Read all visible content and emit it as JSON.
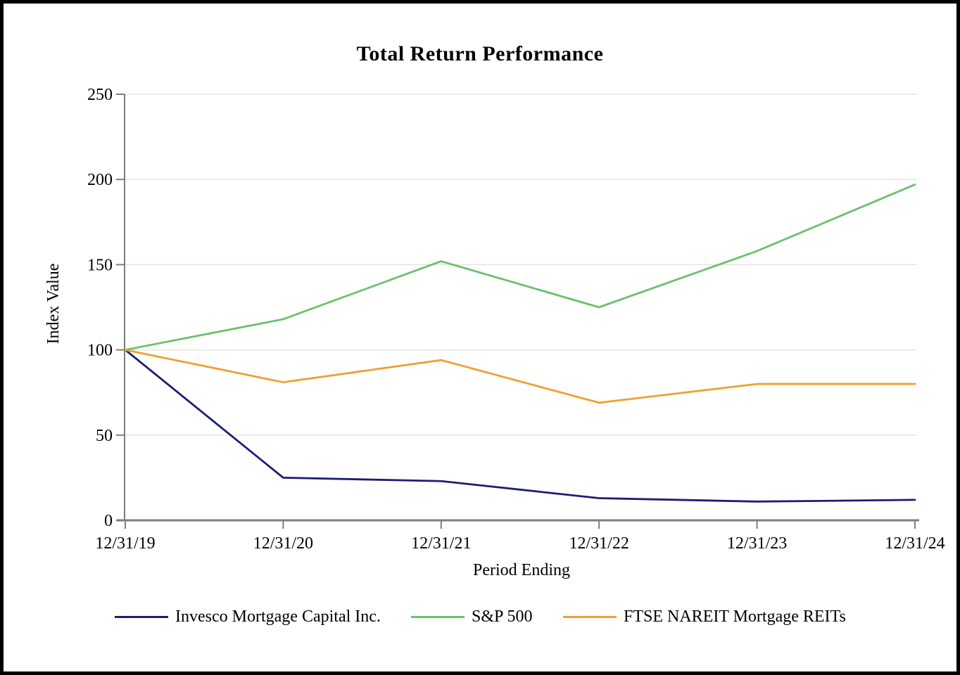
{
  "chart_data": {
    "type": "line",
    "title": "Total Return Performance",
    "xlabel": "Period Ending",
    "ylabel": "Index Value",
    "categories": [
      "12/31/19",
      "12/31/20",
      "12/31/21",
      "12/31/22",
      "12/31/23",
      "12/31/24"
    ],
    "series": [
      {
        "name": "Invesco Mortgage Capital Inc.",
        "color": "#1D1D75",
        "values": [
          100,
          25,
          23,
          13,
          11,
          12
        ]
      },
      {
        "name": "S&P 500",
        "color": "#6CC06C",
        "values": [
          100,
          118,
          152,
          125,
          158,
          197
        ]
      },
      {
        "name": "FTSE NAREIT Mortgage REITs",
        "color": "#F0A030",
        "values": [
          100,
          81,
          94,
          69,
          80,
          80
        ]
      }
    ],
    "ylim": [
      0,
      250
    ],
    "yticks": [
      0,
      50,
      100,
      150,
      200,
      250
    ],
    "grid": "horizontal",
    "legend_position": "bottom"
  },
  "colors": {
    "axis": "#7F7F7F",
    "gridline": "#E5E5E5",
    "text": "#000000",
    "border": "#000000",
    "background": "#FFFFFF"
  }
}
